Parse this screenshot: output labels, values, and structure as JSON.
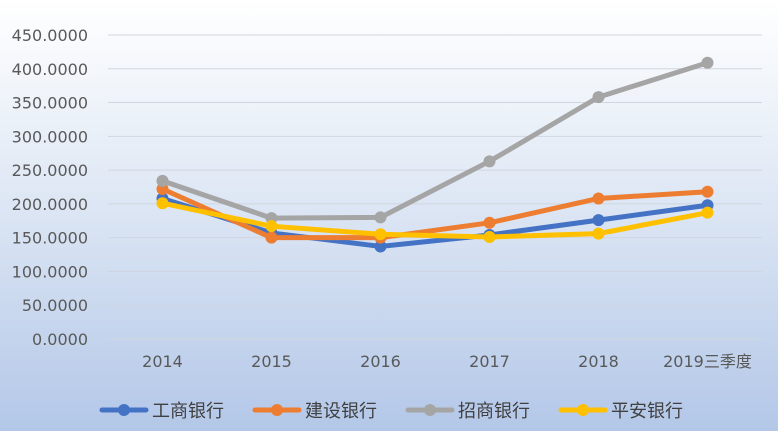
{
  "chart_data": {
    "type": "line",
    "categories": [
      "2014",
      "2015",
      "2016",
      "2017",
      "2018",
      "2019三季度"
    ],
    "series": [
      {
        "name": "工商银行",
        "color": "#4472C4",
        "values": [
          208,
          157,
          137,
          154,
          176,
          198
        ]
      },
      {
        "name": "建设银行",
        "color": "#ED7D31",
        "values": [
          222,
          150,
          150,
          172,
          208,
          218
        ]
      },
      {
        "name": "招商银行",
        "color": "#A5A5A5",
        "values": [
          234,
          179,
          180,
          263,
          358,
          409
        ]
      },
      {
        "name": "平安银行",
        "color": "#FFC000",
        "values": [
          201,
          167,
          155,
          151,
          156,
          187
        ]
      }
    ],
    "ylim": [
      0,
      450
    ],
    "yticks": [
      "0.0000",
      "50.0000",
      "100.0000",
      "150.0000",
      "200.0000",
      "250.0000",
      "300.0000",
      "350.0000",
      "400.0000",
      "450.0000"
    ],
    "grid": true,
    "legend_position": "bottom",
    "title": "",
    "xlabel": "",
    "ylabel": ""
  }
}
